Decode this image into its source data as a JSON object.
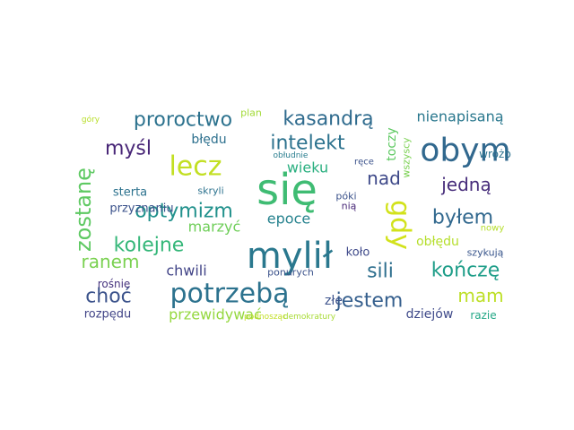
{
  "word_cloud": {
    "words": [
      {
        "text": "się",
        "color": "#3fbc73"
      },
      {
        "text": "mylił",
        "color": "#2a788e"
      },
      {
        "text": "obym",
        "color": "#31688e"
      },
      {
        "text": "potrzebą",
        "color": "#2c728e"
      },
      {
        "text": "lecz",
        "color": "#c2df23"
      },
      {
        "text": "gdy",
        "color": "#d2e21b"
      },
      {
        "text": "zostanę",
        "color": "#5ec962"
      },
      {
        "text": "proroctwo",
        "color": "#2c728e"
      },
      {
        "text": "kasandrą",
        "color": "#2f6b8e"
      },
      {
        "text": "intelekt",
        "color": "#2c728e"
      },
      {
        "text": "optymizm",
        "color": "#21918c"
      },
      {
        "text": "kolejne",
        "color": "#35b779"
      },
      {
        "text": "byłem",
        "color": "#31688e"
      },
      {
        "text": "sili",
        "color": "#2e6f8e"
      },
      {
        "text": "kończę",
        "color": "#1f9e89"
      },
      {
        "text": "jestem",
        "color": "#355f8d"
      },
      {
        "text": "choć",
        "color": "#3b528b"
      },
      {
        "text": "mam",
        "color": "#bddf26"
      },
      {
        "text": "jedną",
        "color": "#472d7b"
      },
      {
        "text": "nad",
        "color": "#3e4989"
      },
      {
        "text": "myśl",
        "color": "#482677"
      },
      {
        "text": "nienapisaną",
        "color": "#2a788e"
      },
      {
        "text": "ranem",
        "color": "#7ad151"
      },
      {
        "text": "błędu",
        "color": "#2d708e"
      },
      {
        "text": "wieku",
        "color": "#29af7f"
      },
      {
        "text": "epoce",
        "color": "#26828e"
      },
      {
        "text": "toczy",
        "color": "#5ec962"
      },
      {
        "text": "chwili",
        "color": "#414487"
      },
      {
        "text": "marzyć",
        "color": "#6ece58"
      },
      {
        "text": "obłędu",
        "color": "#b5de2b"
      },
      {
        "text": "przewidywać",
        "color": "#95d840"
      },
      {
        "text": "sterta",
        "color": "#2c728e"
      },
      {
        "text": "przyznaniu",
        "color": "#3b528b"
      },
      {
        "text": "złe",
        "color": "#3b528b"
      },
      {
        "text": "koło",
        "color": "#3e4989"
      },
      {
        "text": "dziejów",
        "color": "#3e4989"
      },
      {
        "text": "rozpędu",
        "color": "#414487"
      },
      {
        "text": "rośnie",
        "color": "#46337e"
      },
      {
        "text": "razie",
        "color": "#22a785"
      },
      {
        "text": "wróżb",
        "color": "#2c728e"
      },
      {
        "text": "szykują",
        "color": "#39568c"
      },
      {
        "text": "ponurych",
        "color": "#3b528b"
      },
      {
        "text": "skryli",
        "color": "#2c728e"
      },
      {
        "text": "nią",
        "color": "#482878"
      },
      {
        "text": "póki",
        "color": "#3b528b"
      },
      {
        "text": "wszyscy",
        "color": "#7ad151"
      },
      {
        "text": "ręce",
        "color": "#3b528b"
      },
      {
        "text": "nowy",
        "color": "#b5de2b"
      },
      {
        "text": "plan",
        "color": "#a2da37"
      },
      {
        "text": "góry",
        "color": "#b8de29"
      },
      {
        "text": "obłudnie",
        "color": "#287d8e"
      },
      {
        "text": "podnosząc",
        "color": "#c2df23"
      },
      {
        "text": "demokratury",
        "color": "#a8db34"
      }
    ]
  }
}
